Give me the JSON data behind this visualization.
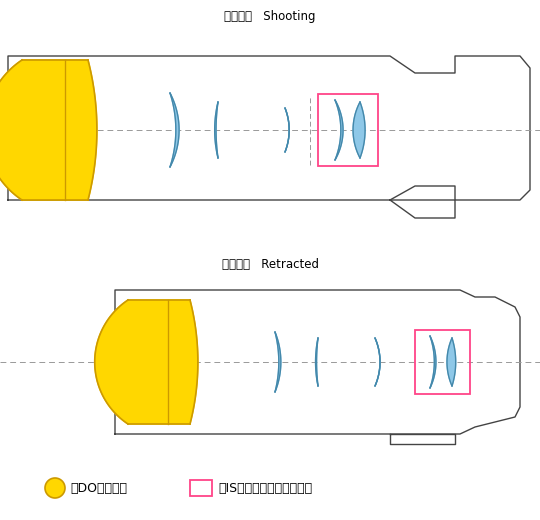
{
  "title_shooting": "撮影状態   Shooting",
  "title_retracted": "沈胴状態   Retracted",
  "legend_text": "●はDOレンズ、□はISユニットを表します。",
  "bg_color": "#ffffff",
  "lens_color": "#8EC8E8",
  "lens_edge_color": "#4488AA",
  "do_color": "#FFD700",
  "do_edge_color": "#CC9900",
  "is_box_color": "#FF4488",
  "body_edge_color": "#444444",
  "dash_color": "#999999",
  "title_fontsize": 8.5,
  "legend_fontsize": 9
}
